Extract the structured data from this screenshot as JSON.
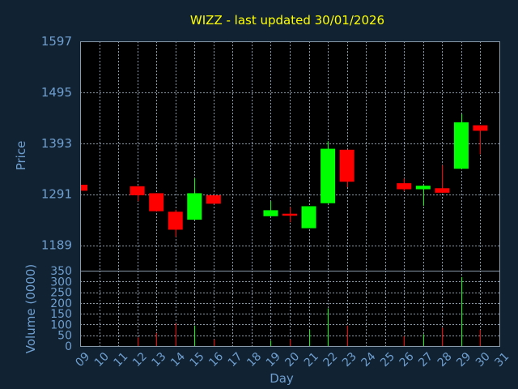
{
  "chart_data": {
    "type": "candlestick",
    "title": "WIZZ - last updated 30/01/2026",
    "xlabel": "Day",
    "ylabel": "Price",
    "volume_label": "Volume (0000)",
    "price_ticks": [
      1189,
      1291,
      1393,
      1495,
      1597
    ],
    "volume_ticks": [
      0,
      50,
      100,
      150,
      200,
      250,
      300,
      350
    ],
    "day_labels": [
      "09",
      "10",
      "11",
      "12",
      "13",
      "14",
      "15",
      "16",
      "17",
      "18",
      "19",
      "20",
      "21",
      "22",
      "23",
      "24",
      "25",
      "26",
      "27",
      "28",
      "29",
      "30",
      "31"
    ],
    "price_range": [
      1138,
      1597
    ],
    "volume_range": [
      0,
      350
    ],
    "candles": [
      {
        "day": "09",
        "open": 1310,
        "close": 1298,
        "high": 1310,
        "low": 1298,
        "volume": 0
      },
      {
        "day": "12",
        "open": 1307,
        "close": 1289,
        "high": 1307,
        "low": 1277,
        "volume": 40
      },
      {
        "day": "13",
        "open": 1293,
        "close": 1257,
        "high": 1293,
        "low": 1257,
        "volume": 60
      },
      {
        "day": "14",
        "open": 1256,
        "close": 1220,
        "high": 1260,
        "low": 1206,
        "volume": 105
      },
      {
        "day": "15",
        "open": 1240,
        "close": 1293,
        "high": 1323,
        "low": 1240,
        "volume": 95
      },
      {
        "day": "16",
        "open": 1289,
        "close": 1272,
        "high": 1289,
        "low": 1272,
        "volume": 30
      },
      {
        "day": "19",
        "open": 1247,
        "close": 1259,
        "high": 1277,
        "low": 1247,
        "volume": 25
      },
      {
        "day": "20",
        "open": 1252,
        "close": 1248,
        "high": 1265,
        "low": 1235,
        "volume": 30
      },
      {
        "day": "21",
        "open": 1223,
        "close": 1267,
        "high": 1267,
        "low": 1223,
        "volume": 75
      },
      {
        "day": "22",
        "open": 1273,
        "close": 1382,
        "high": 1397,
        "low": 1273,
        "volume": 175
      },
      {
        "day": "23",
        "open": 1380,
        "close": 1316,
        "high": 1380,
        "low": 1305,
        "volume": 95
      },
      {
        "day": "26",
        "open": 1313,
        "close": 1301,
        "high": 1322,
        "low": 1297,
        "volume": 45
      },
      {
        "day": "27",
        "open": 1301,
        "close": 1308,
        "high": 1310,
        "low": 1268,
        "volume": 55
      },
      {
        "day": "28",
        "open": 1303,
        "close": 1294,
        "high": 1349,
        "low": 1294,
        "volume": 85
      },
      {
        "day": "29",
        "open": 1342,
        "close": 1435,
        "high": 1451,
        "low": 1342,
        "volume": 320
      },
      {
        "day": "30",
        "open": 1429,
        "close": 1418,
        "high": 1429,
        "low": 1371,
        "volume": 75
      }
    ],
    "up_color": "#00ff00",
    "down_color": "#ff0000",
    "grid": true
  },
  "colors": {
    "background": "#112233",
    "plot_background": "#000000",
    "grid": "#8899aa",
    "frame": "#8899aa",
    "axis_text": "#6f9fcf",
    "title_text": "#ffff00"
  }
}
